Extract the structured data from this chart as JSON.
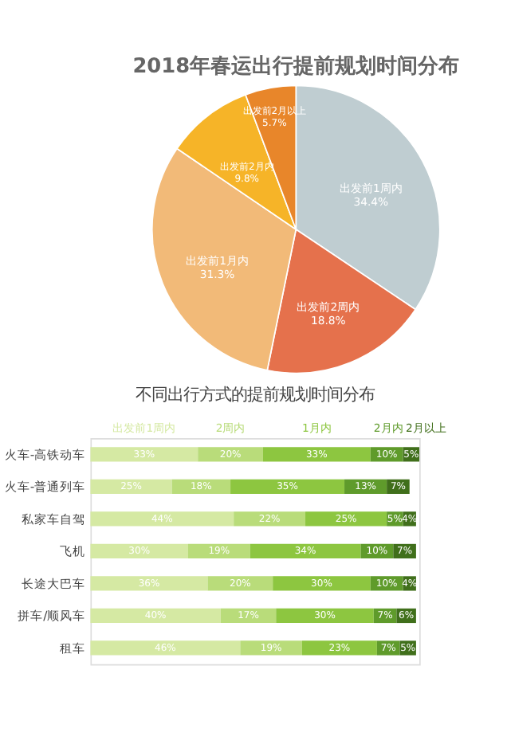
{
  "chart_data": [
    {
      "type": "pie",
      "title": "2018年春运出行提前规划时间分布",
      "categories": [
        "出发前1周内",
        "出发前2周内",
        "出发前1月内",
        "出发前2月内",
        "出发前2月以上"
      ],
      "values": [
        34.4,
        18.8,
        31.3,
        9.8,
        5.7
      ],
      "value_labels": [
        "34.4%",
        "18.8%",
        "31.3%",
        "9.8%",
        "5.7%"
      ],
      "colors": [
        "#bfcdd1",
        "#e5714c",
        "#f2ba78",
        "#f6b428",
        "#e8862a"
      ]
    },
    {
      "type": "bar",
      "orientation": "horizontal",
      "stacked": true,
      "title": "不同出行方式的提前规划时间分布",
      "categories": [
        "火车-高铁动车",
        "火车-普通列车",
        "私家车自驾",
        "飞机",
        "长途大巴车",
        "拼车/顺风车",
        "租车"
      ],
      "series": [
        {
          "name": "出发前1周内",
          "color": "#d5e9a3",
          "values": [
            33,
            25,
            44,
            30,
            36,
            40,
            46
          ],
          "value_labels": [
            "33%",
            "25%",
            "44%",
            "30%",
            "36%",
            "40%",
            "46%"
          ]
        },
        {
          "name": "2周内",
          "color": "#b9dc7a",
          "values": [
            20,
            18,
            22,
            19,
            20,
            17,
            19
          ],
          "value_labels": [
            "20%",
            "18%",
            "22%",
            "19%",
            "20%",
            "17%",
            "19%"
          ]
        },
        {
          "name": "1月内",
          "color": "#8dc640",
          "values": [
            33,
            35,
            25,
            34,
            30,
            30,
            23
          ],
          "value_labels": [
            "33%",
            "35%",
            "25%",
            "34%",
            "30%",
            "30%",
            "23%"
          ]
        },
        {
          "name": "2月内",
          "color": "#5f9b2b",
          "values": [
            10,
            13,
            5,
            10,
            10,
            7,
            7
          ],
          "value_labels": [
            "10%",
            "13%",
            "5%",
            "10%",
            "10%",
            "7%",
            "7%"
          ]
        },
        {
          "name": "2月以上",
          "color": "#406f1b",
          "values": [
            5,
            7,
            4,
            7,
            4,
            6,
            5
          ],
          "value_labels": [
            "5%",
            "7%",
            "4%",
            "7%",
            "4%",
            "6%",
            "5%"
          ]
        }
      ]
    }
  ]
}
